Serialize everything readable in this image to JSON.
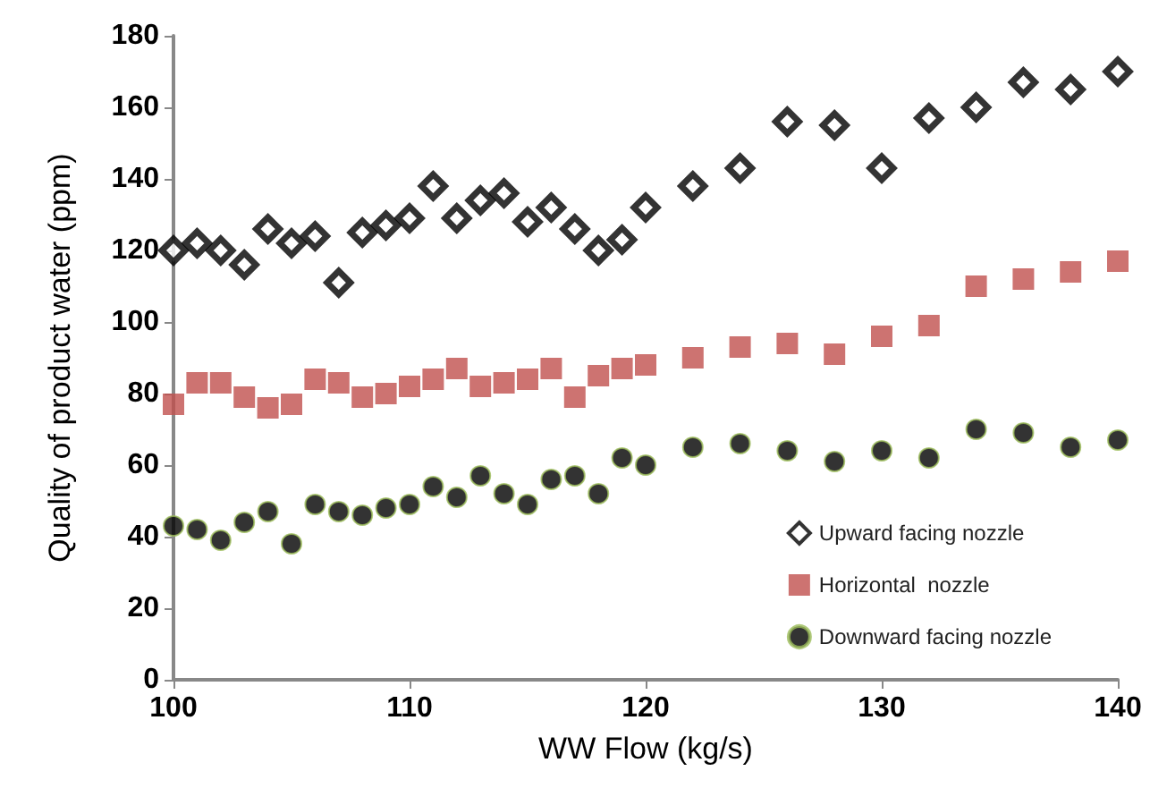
{
  "chart_data": {
    "type": "scatter",
    "xlabel": "WW Flow (kg/s)",
    "ylabel": "Quality of product water (ppm)",
    "x": [
      100,
      101,
      102,
      103,
      104,
      105,
      106,
      107,
      108,
      109,
      110,
      111,
      112,
      113,
      114,
      115,
      116,
      117,
      118,
      119,
      120,
      122,
      124,
      126,
      128,
      130,
      132,
      134,
      136,
      138,
      140
    ],
    "series": [
      {
        "name": "Upward facing nozzle",
        "color": "#000000",
        "marker": "diamond",
        "values": [
          120,
          122,
          120,
          116,
          126,
          122,
          124,
          111,
          125,
          127,
          129,
          138,
          129,
          134,
          136,
          128,
          132,
          126,
          120,
          123,
          132,
          138,
          143,
          156,
          155,
          143,
          157,
          160,
          167,
          165,
          170
        ]
      },
      {
        "name": "Horizontal  nozzle",
        "color": "#c0504d",
        "marker": "square",
        "values": [
          77,
          83,
          83,
          79,
          76,
          77,
          84,
          83,
          79,
          80,
          82,
          84,
          87,
          82,
          83,
          84,
          87,
          79,
          85,
          87,
          88,
          90,
          93,
          94,
          91,
          96,
          99,
          110,
          112,
          114,
          117
        ]
      },
      {
        "name": "Downward facing nozzle",
        "color": "#000000",
        "marker": "circle",
        "values": [
          43,
          42,
          39,
          44,
          47,
          38,
          49,
          47,
          46,
          48,
          49,
          54,
          51,
          57,
          52,
          49,
          56,
          57,
          52,
          62,
          60,
          65,
          66,
          64,
          61,
          64,
          62,
          70,
          69,
          65,
          67
        ]
      }
    ],
    "xlim": [
      100,
      140
    ],
    "xticks": [
      100,
      110,
      120,
      130,
      140
    ],
    "ylim": [
      0,
      180
    ],
    "yticks": [
      0,
      20,
      40,
      60,
      80,
      100,
      120,
      140,
      160,
      180
    ],
    "grid": false,
    "legend": "bottom right"
  }
}
